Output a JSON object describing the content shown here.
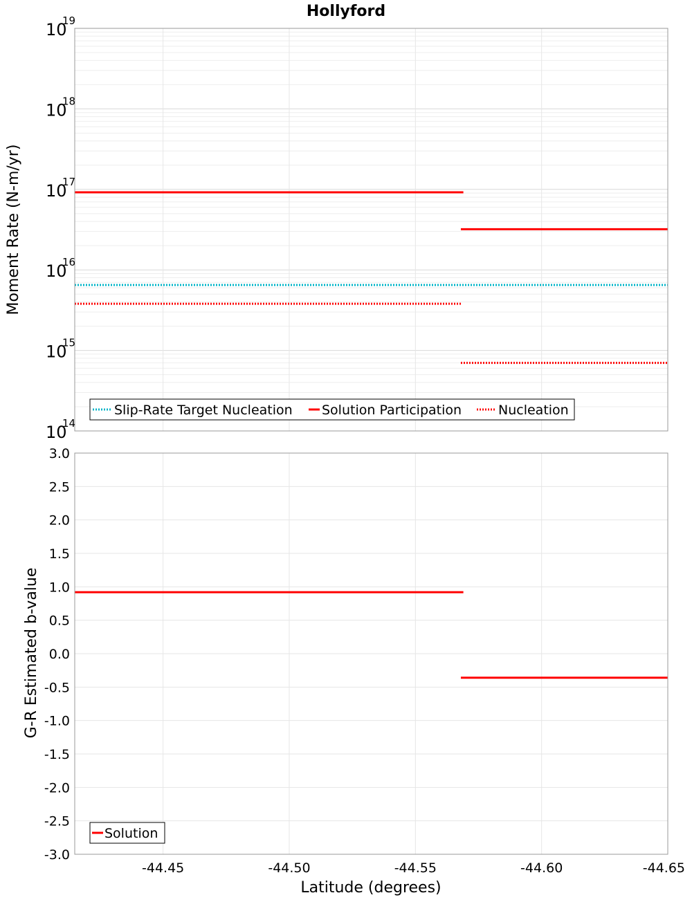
{
  "chart_data": [
    {
      "type": "line",
      "title": "Hollyford",
      "ylabel": "Moment Rate (N-m/yr)",
      "xlabel": "",
      "yscale": "log",
      "ylim": [
        100000000000000.0,
        1e+19
      ],
      "xlim": [
        -44.415,
        -44.65
      ],
      "xaxis": "reversed",
      "grid": true,
      "legend": "bottom-left",
      "ytick_labels": [
        {
          "base": "10",
          "exp": "14"
        },
        {
          "base": "10",
          "exp": "15"
        },
        {
          "base": "10",
          "exp": "16"
        },
        {
          "base": "10",
          "exp": "17"
        },
        {
          "base": "10",
          "exp": "18"
        },
        {
          "base": "10",
          "exp": "19"
        }
      ],
      "series": [
        {
          "name": "Slip-Rate Target Nucleation",
          "color": "#00b4c8",
          "style": "dotted",
          "segments": [
            {
              "x": [
                -44.415,
                -44.65
              ],
              "y": 6500000000000000.0
            }
          ]
        },
        {
          "name": "Solution Participation",
          "color": "#ff0000",
          "style": "solid",
          "segments": [
            {
              "x": [
                -44.415,
                -44.569
              ],
              "y": 9.2e+16
            },
            {
              "x": [
                -44.568,
                -44.65
              ],
              "y": 3.2e+16
            }
          ]
        },
        {
          "name": "Nucleation",
          "color": "#ff0000",
          "style": "dotted",
          "segments": [
            {
              "x": [
                -44.415,
                -44.568
              ],
              "y": 3800000000000000.0
            },
            {
              "x": [
                -44.568,
                -44.65
              ],
              "y": 700000000000000.0
            }
          ]
        }
      ]
    },
    {
      "type": "line",
      "title": "",
      "ylabel": "G-R Estimated b-value",
      "xlabel": "Latitude (degrees)",
      "ylim": [
        -3.0,
        3.0
      ],
      "xlim": [
        -44.415,
        -44.65
      ],
      "xaxis": "reversed",
      "grid": true,
      "legend": "bottom-left",
      "ytick_labels": [
        "3.0",
        "2.5",
        "2.0",
        "1.5",
        "1.0",
        "0.5",
        "0.0",
        "-0.5",
        "-1.0",
        "-1.5",
        "-2.0",
        "-2.5",
        "-3.0"
      ],
      "xtick_labels": [
        "-44.45",
        "-44.50",
        "-44.55",
        "-44.60",
        "-44.65"
      ],
      "series": [
        {
          "name": "Solution",
          "color": "#ff0000",
          "style": "solid",
          "segments": [
            {
              "x": [
                -44.415,
                -44.569
              ],
              "y": 0.92
            },
            {
              "x": [
                -44.568,
                -44.65
              ],
              "y": -0.36
            }
          ]
        }
      ]
    }
  ]
}
